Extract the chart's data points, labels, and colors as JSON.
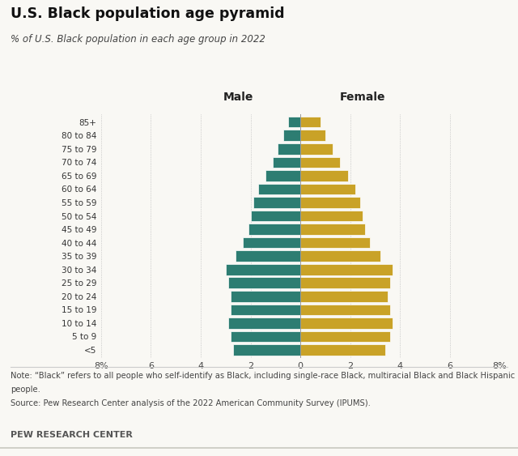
{
  "title": "U.S. Black population age pyramid",
  "subtitle": "% of U.S. Black population in each age group in 2022",
  "note1": "Note: “Black” refers to all people who self-identify as Black, including single-race Black, multiracial Black and Black Hispanic",
  "note2": "people.",
  "note3": "Source: Pew Research Center analysis of the 2022 American Community Survey (IPUMS).",
  "footer": "PEW RESEARCH CENTER",
  "age_groups": [
    "<5",
    "5 to 9",
    "10 to 14",
    "15 to 19",
    "20 to 24",
    "25 to 29",
    "30 to 34",
    "35 to 39",
    "40 to 44",
    "45 to 49",
    "50 to 54",
    "55 to 59",
    "60 to 64",
    "65 to 69",
    "70 to 74",
    "75 to 79",
    "80 to 84",
    "85+"
  ],
  "male_values": [
    2.7,
    2.8,
    2.9,
    2.8,
    2.8,
    2.9,
    3.0,
    2.6,
    2.3,
    2.1,
    2.0,
    1.9,
    1.7,
    1.4,
    1.1,
    0.9,
    0.7,
    0.5
  ],
  "female_values": [
    3.4,
    3.6,
    3.7,
    3.6,
    3.5,
    3.6,
    3.7,
    3.2,
    2.8,
    2.6,
    2.5,
    2.4,
    2.2,
    1.9,
    1.6,
    1.3,
    1.0,
    0.8
  ],
  "male_color": "#2d7d72",
  "female_color": "#c9a227",
  "background_color": "#f9f8f4",
  "male_label": "Male",
  "female_label": "Female",
  "xticks": [
    -8,
    -6,
    -4,
    -2,
    0,
    2,
    4,
    6,
    8
  ],
  "xticklabels": [
    "8%",
    "6",
    "4",
    "2",
    "0",
    "2",
    "4",
    "6",
    "8%"
  ]
}
